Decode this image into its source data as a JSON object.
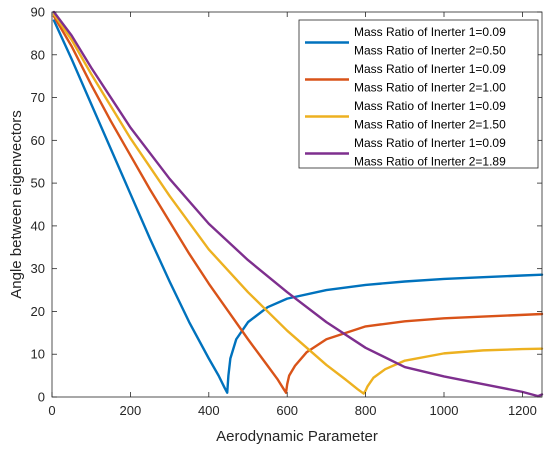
{
  "chart_data": {
    "type": "line",
    "title": "",
    "xlabel": "Aerodynamic Parameter",
    "ylabel": "Angle between eigenvectors",
    "xlim": [
      0,
      1250
    ],
    "ylim": [
      0,
      90
    ],
    "xticks": [
      0,
      200,
      400,
      600,
      800,
      1000,
      1200
    ],
    "yticks": [
      0,
      10,
      20,
      30,
      40,
      50,
      60,
      70,
      80,
      90
    ],
    "xtick_labels": [
      "0",
      "200",
      "400",
      "600",
      "800",
      "1000",
      "1200"
    ],
    "ytick_labels": [
      "0",
      "10",
      "20",
      "30",
      "40",
      "50",
      "60",
      "70",
      "80",
      "90"
    ],
    "grid": false,
    "legend_position": "top-right",
    "series": [
      {
        "name_line1": "Mass Ratio of Inerter 1=0.09",
        "name_line2": "Mass Ratio of Inerter 2=0.50",
        "color": "#0072BD",
        "x": [
          5,
          50,
          100,
          150,
          200,
          250,
          300,
          350,
          400,
          425,
          440,
          447,
          450,
          455,
          470,
          500,
          550,
          600,
          700,
          800,
          900,
          1000,
          1100,
          1200,
          1250
        ],
        "y": [
          88,
          79,
          68.5,
          58,
          47.5,
          37,
          27,
          17.5,
          9,
          5,
          2.2,
          1,
          5,
          9,
          13.5,
          17.5,
          21,
          23,
          25,
          26.2,
          27,
          27.6,
          28,
          28.4,
          28.6
        ]
      },
      {
        "name_line1": "Mass Ratio of Inerter 1=0.09",
        "name_line2": "Mass Ratio of Inerter 2=1.00",
        "color": "#D95319",
        "x": [
          5,
          50,
          100,
          150,
          200,
          250,
          300,
          350,
          400,
          450,
          500,
          550,
          575,
          590,
          597,
          600,
          605,
          620,
          650,
          700,
          800,
          900,
          1000,
          1100,
          1200,
          1250
        ],
        "y": [
          89,
          82,
          73,
          64.5,
          56.5,
          48.5,
          41,
          33.5,
          26.5,
          20,
          13.5,
          7.3,
          4.2,
          2,
          1,
          3,
          5,
          7.3,
          10.5,
          13.5,
          16.5,
          17.7,
          18.4,
          18.8,
          19.2,
          19.4
        ]
      },
      {
        "name_line1": "Mass Ratio of Inerter 1=0.09",
        "name_line2": "Mass Ratio of Inerter 2=1.50",
        "color": "#EDB120",
        "x": [
          5,
          50,
          100,
          150,
          200,
          300,
          400,
          500,
          600,
          700,
          750,
          780,
          795,
          800,
          805,
          820,
          850,
          900,
          1000,
          1100,
          1200,
          1250
        ],
        "y": [
          89.5,
          83.5,
          75.5,
          68,
          60.5,
          47,
          34.5,
          24.5,
          15.5,
          7.5,
          4,
          1.8,
          0.8,
          1.5,
          2.5,
          4.5,
          6.5,
          8.5,
          10.2,
          10.9,
          11.2,
          11.3
        ]
      },
      {
        "name_line1": "Mass Ratio of Inerter 1=0.09",
        "name_line2": "Mass Ratio of Inerter 2=1.89",
        "color": "#7E2F8E",
        "x": [
          5,
          50,
          100,
          150,
          200,
          300,
          400,
          500,
          600,
          700,
          800,
          900,
          1000,
          1100,
          1200,
          1240,
          1250
        ],
        "y": [
          90,
          84.5,
          77,
          70,
          63,
          51,
          40.5,
          32,
          24.5,
          17.5,
          11.5,
          7,
          4.8,
          3,
          1.2,
          0.2,
          0.6
        ]
      }
    ]
  }
}
